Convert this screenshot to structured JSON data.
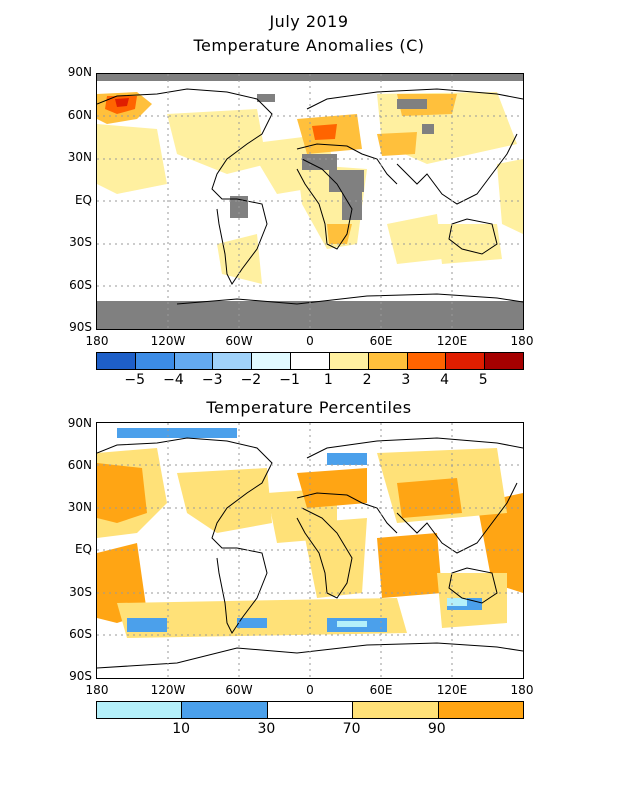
{
  "top_panel": {
    "title_line1": "July 2019",
    "title_line2": "Temperature Anomalies (C)",
    "lat_labels": [
      "90N",
      "60N",
      "30N",
      "EQ",
      "30S",
      "60S",
      "90S"
    ],
    "lon_labels": [
      "180",
      "120W",
      "60W",
      "0",
      "60E",
      "120E",
      "180"
    ],
    "colorbar_colors": [
      "#1e5fc8",
      "#3c8ce6",
      "#64aaf0",
      "#a0d2fa",
      "#e1faff",
      "#ffffff",
      "#fff0a0",
      "#ffc03c",
      "#ff6400",
      "#e01e00",
      "#a50000"
    ],
    "colorbar_labels": [
      "−5",
      "−4",
      "−3",
      "−2",
      "−1",
      "1",
      "2",
      "3",
      "4",
      "5"
    ]
  },
  "bottom_panel": {
    "title": "Temperature Percentiles",
    "lat_labels": [
      "90N",
      "60N",
      "30N",
      "EQ",
      "30S",
      "60S",
      "90S"
    ],
    "lon_labels": [
      "180",
      "120W",
      "60W",
      "0",
      "60E",
      "120E",
      "180"
    ],
    "colorbar_colors": [
      "#b4f0fa",
      "#4ba0eb",
      "#ffffff",
      "#ffe178",
      "#ffa514"
    ],
    "colorbar_labels": [
      "10",
      "30",
      "70",
      "90"
    ]
  },
  "colors": {
    "missing_data": "#808080",
    "gridline": "#9a9a9a",
    "coastline": "#000000"
  }
}
